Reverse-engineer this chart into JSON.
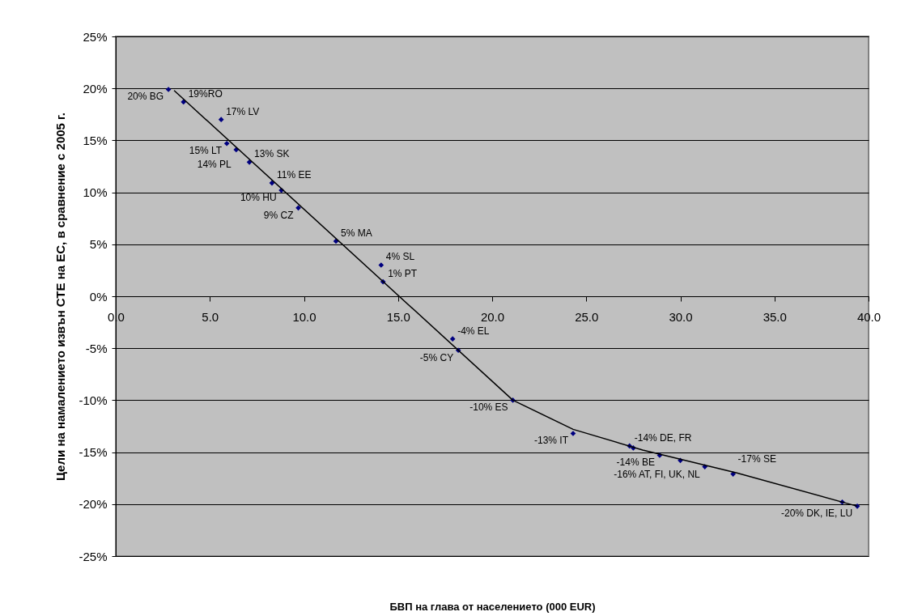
{
  "chart_data": {
    "type": "scatter",
    "xlabel": "БВП на глава от населението (000 EUR)",
    "ylabel": "Цели на намалението извън СТЕ на ЕС, в сравнение с 2005 г.",
    "xlim": [
      0,
      40
    ],
    "xticks": [
      {
        "value": 0,
        "label": "0.0"
      },
      {
        "value": 5,
        "label": "5.0"
      },
      {
        "value": 10,
        "label": "10.0"
      },
      {
        "value": 15,
        "label": "15.0"
      },
      {
        "value": 20,
        "label": "20.0"
      },
      {
        "value": 25,
        "label": "25.0"
      },
      {
        "value": 30,
        "label": "30.0"
      },
      {
        "value": 35,
        "label": "35.0"
      },
      {
        "value": 40,
        "label": "40.0"
      }
    ],
    "ylim": [
      -25,
      25
    ],
    "yticks": [
      {
        "value": -25,
        "label": "-25%"
      },
      {
        "value": -20,
        "label": "-20%"
      },
      {
        "value": -15,
        "label": "-15%"
      },
      {
        "value": -10,
        "label": "-10%"
      },
      {
        "value": -5,
        "label": "-5%"
      },
      {
        "value": 0,
        "label": "0%"
      },
      {
        "value": 5,
        "label": "5%"
      },
      {
        "value": 10,
        "label": "10%"
      },
      {
        "value": 15,
        "label": "15%"
      },
      {
        "value": 20,
        "label": "20%"
      },
      {
        "value": 25,
        "label": "25%"
      }
    ],
    "grid": "y",
    "series": [
      {
        "color": "#000080",
        "marker": "diamond",
        "x": [
          2.8,
          3.6,
          5.6,
          5.9,
          6.4,
          7.1,
          8.3,
          8.8,
          9.7,
          11.7,
          14.1,
          14.2,
          17.9,
          18.2,
          21.1,
          24.3,
          27.3,
          27.5,
          28.9,
          30.0,
          31.3,
          32.8,
          38.6,
          39.4
        ],
        "values": [
          19.9,
          18.7,
          17.0,
          14.7,
          14.1,
          12.9,
          10.9,
          10.2,
          8.5,
          5.3,
          3.0,
          1.4,
          -4.1,
          -5.2,
          -10.0,
          -13.2,
          -14.4,
          -14.6,
          -15.3,
          -15.8,
          -16.4,
          -17.1,
          -19.8,
          -20.2
        ]
      },
      {
        "type": "line",
        "color": "#000000",
        "marker": "none",
        "line_style": "solid",
        "x": [
          3.1,
          21.1,
          24.3,
          28.0,
          33.0,
          39.4
        ],
        "values": [
          19.8,
          -10.0,
          -12.8,
          -14.8,
          -17.0,
          -20.2
        ]
      }
    ],
    "annotations": [
      {
        "text": "20% BG",
        "x": 2.8,
        "y": 19.9
      },
      {
        "text": "19%RO",
        "x": 3.6,
        "y": 18.7
      },
      {
        "text": "17% LV",
        "x": 5.6,
        "y": 17.0
      },
      {
        "text": "15% LT",
        "x": 5.9,
        "y": 14.7
      },
      {
        "text": "14% PL",
        "x": 6.4,
        "y": 14.1
      },
      {
        "text": "13% SK",
        "x": 7.1,
        "y": 12.9
      },
      {
        "text": "11% EE",
        "x": 8.3,
        "y": 10.9
      },
      {
        "text": "10% HU",
        "x": 8.8,
        "y": 10.2
      },
      {
        "text": "9% CZ",
        "x": 9.7,
        "y": 8.5
      },
      {
        "text": "5% MA",
        "x": 11.7,
        "y": 5.3
      },
      {
        "text": "4% SL",
        "x": 14.1,
        "y": 3.0
      },
      {
        "text": "1% PT",
        "x": 14.2,
        "y": 1.4
      },
      {
        "text": "-4% EL",
        "x": 17.9,
        "y": -4.1
      },
      {
        "text": "-5% CY",
        "x": 18.2,
        "y": -5.2
      },
      {
        "text": "-10% ES",
        "x": 21.1,
        "y": -10.0
      },
      {
        "text": "-13% IT",
        "x": 24.3,
        "y": -13.2
      },
      {
        "text": "-14% DE, FR",
        "x": 27.3,
        "y": -14.4
      },
      {
        "text": "-14% BE",
        "x": 28.9,
        "y": -15.3
      },
      {
        "text": "-16% AT, FI, UK, NL",
        "x": 31.3,
        "y": -16.4
      },
      {
        "text": "-17% SE",
        "x": 32.8,
        "y": -17.1
      },
      {
        "text": "-20% DK, IE, LU",
        "x": 39.4,
        "y": -20.2
      }
    ]
  }
}
